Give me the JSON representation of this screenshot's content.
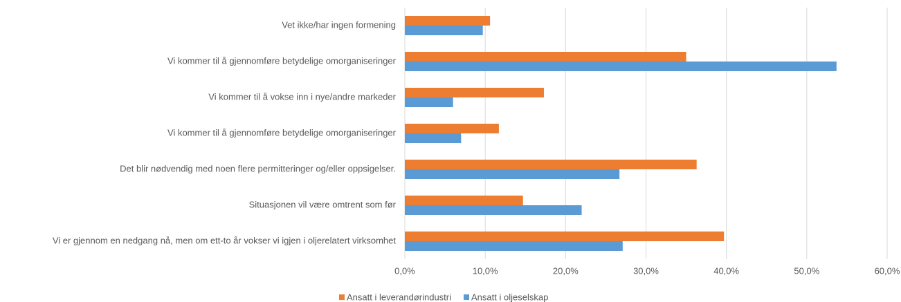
{
  "chart_data": {
    "type": "hbar",
    "categories": [
      "Vet ikke/har ingen formening",
      "Vi kommer til å gjennomføre betydelige omorganiseringer",
      "Vi kommer til å vokse inn i nye/andre markeder",
      "Vi kommer til å gjennomføre betydelige omorganiseringer",
      "Det blir nødvendig med noen flere permitteringer og/eller oppsigelser.",
      "Situasjonen vil være omtrent som før",
      "Vi er gjennom en nedgang nå, men om ett-to år vokser vi igjen i oljerelatert virksomhet"
    ],
    "series": [
      {
        "name": "Ansatt i leverandørindustri",
        "color": "#ed7d31",
        "values": [
          10.6,
          35.0,
          17.3,
          11.7,
          36.3,
          14.7,
          39.7
        ]
      },
      {
        "name": "Ansatt i oljeselskap",
        "color": "#5b9bd5",
        "values": [
          9.7,
          53.7,
          6.0,
          7.0,
          26.7,
          22.0,
          27.1
        ]
      }
    ],
    "xlim": [
      0,
      60
    ],
    "xticks": [
      {
        "value": 0,
        "label": "0,0%"
      },
      {
        "value": 10,
        "label": "10,0%"
      },
      {
        "value": 20,
        "label": "20,0%"
      },
      {
        "value": 30,
        "label": "30,0%"
      },
      {
        "value": 40,
        "label": "40,0%"
      },
      {
        "value": 50,
        "label": "50,0%"
      },
      {
        "value": 60,
        "label": "60,0%"
      }
    ],
    "grid": true,
    "legend": "bottom"
  }
}
